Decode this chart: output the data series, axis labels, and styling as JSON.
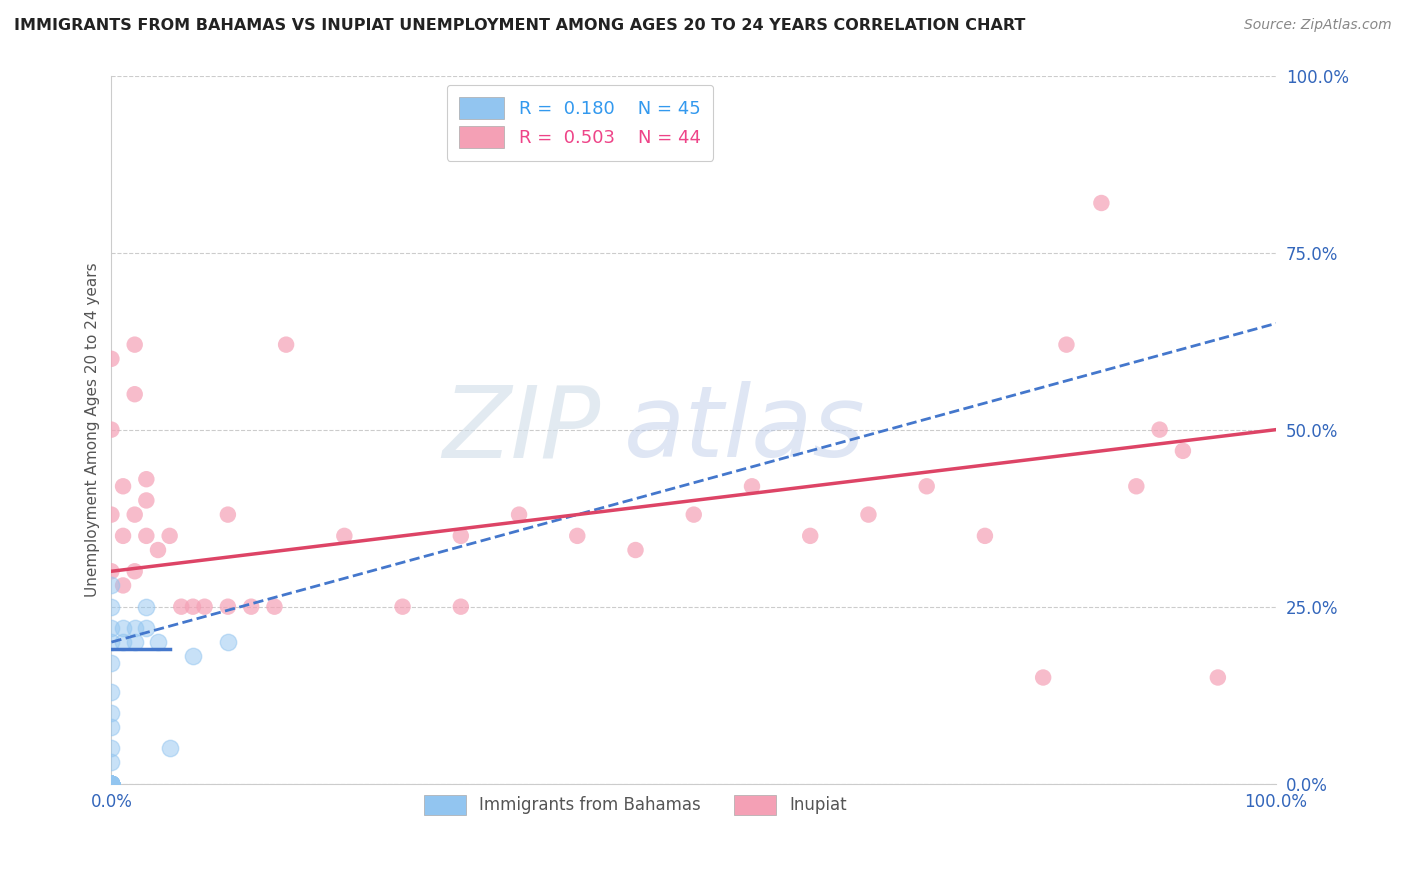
{
  "title": "IMMIGRANTS FROM BAHAMAS VS INUPIAT UNEMPLOYMENT AMONG AGES 20 TO 24 YEARS CORRELATION CHART",
  "source": "Source: ZipAtlas.com",
  "ylabel": "Unemployment Among Ages 20 to 24 years",
  "xlim": [
    0.0,
    1.0
  ],
  "ylim": [
    0.0,
    1.0
  ],
  "ytick_positions": [
    0.0,
    0.25,
    0.5,
    0.75,
    1.0
  ],
  "ytick_labels": [
    "0.0%",
    "25.0%",
    "50.0%",
    "75.0%",
    "100.0%"
  ],
  "grid_color": "#cccccc",
  "blue_color": "#92C5F0",
  "pink_color": "#F4A0B5",
  "blue_line_color": "#4477CC",
  "pink_line_color": "#DD4466",
  "blue_scatter": [
    [
      0.0,
      0.0
    ],
    [
      0.0,
      0.0
    ],
    [
      0.0,
      0.0
    ],
    [
      0.0,
      0.0
    ],
    [
      0.0,
      0.0
    ],
    [
      0.0,
      0.0
    ],
    [
      0.0,
      0.0
    ],
    [
      0.0,
      0.0
    ],
    [
      0.0,
      0.0
    ],
    [
      0.0,
      0.0
    ],
    [
      0.0,
      0.0
    ],
    [
      0.0,
      0.0
    ],
    [
      0.0,
      0.0
    ],
    [
      0.0,
      0.0
    ],
    [
      0.0,
      0.0
    ],
    [
      0.0,
      0.0
    ],
    [
      0.0,
      0.0
    ],
    [
      0.0,
      0.0
    ],
    [
      0.0,
      0.0
    ],
    [
      0.0,
      0.0
    ],
    [
      0.0,
      0.0
    ],
    [
      0.0,
      0.0
    ],
    [
      0.0,
      0.0
    ],
    [
      0.0,
      0.0
    ],
    [
      0.0,
      0.0
    ],
    [
      0.0,
      0.03
    ],
    [
      0.0,
      0.05
    ],
    [
      0.0,
      0.08
    ],
    [
      0.0,
      0.1
    ],
    [
      0.0,
      0.13
    ],
    [
      0.0,
      0.17
    ],
    [
      0.0,
      0.2
    ],
    [
      0.0,
      0.22
    ],
    [
      0.0,
      0.25
    ],
    [
      0.0,
      0.28
    ],
    [
      0.01,
      0.2
    ],
    [
      0.01,
      0.22
    ],
    [
      0.02,
      0.2
    ],
    [
      0.02,
      0.22
    ],
    [
      0.03,
      0.22
    ],
    [
      0.03,
      0.25
    ],
    [
      0.04,
      0.2
    ],
    [
      0.05,
      0.05
    ],
    [
      0.07,
      0.18
    ],
    [
      0.1,
      0.2
    ]
  ],
  "pink_scatter": [
    [
      0.0,
      0.3
    ],
    [
      0.0,
      0.38
    ],
    [
      0.0,
      0.5
    ],
    [
      0.0,
      0.6
    ],
    [
      0.01,
      0.28
    ],
    [
      0.01,
      0.35
    ],
    [
      0.01,
      0.42
    ],
    [
      0.02,
      0.3
    ],
    [
      0.02,
      0.38
    ],
    [
      0.02,
      0.55
    ],
    [
      0.02,
      0.62
    ],
    [
      0.03,
      0.35
    ],
    [
      0.03,
      0.4
    ],
    [
      0.03,
      0.43
    ],
    [
      0.04,
      0.33
    ],
    [
      0.05,
      0.35
    ],
    [
      0.06,
      0.25
    ],
    [
      0.07,
      0.25
    ],
    [
      0.08,
      0.25
    ],
    [
      0.1,
      0.25
    ],
    [
      0.1,
      0.38
    ],
    [
      0.12,
      0.25
    ],
    [
      0.14,
      0.25
    ],
    [
      0.15,
      0.62
    ],
    [
      0.2,
      0.35
    ],
    [
      0.25,
      0.25
    ],
    [
      0.3,
      0.25
    ],
    [
      0.3,
      0.35
    ],
    [
      0.35,
      0.38
    ],
    [
      0.4,
      0.35
    ],
    [
      0.45,
      0.33
    ],
    [
      0.5,
      0.38
    ],
    [
      0.55,
      0.42
    ],
    [
      0.6,
      0.35
    ],
    [
      0.65,
      0.38
    ],
    [
      0.7,
      0.42
    ],
    [
      0.75,
      0.35
    ],
    [
      0.8,
      0.15
    ],
    [
      0.82,
      0.62
    ],
    [
      0.85,
      0.82
    ],
    [
      0.88,
      0.42
    ],
    [
      0.9,
      0.5
    ],
    [
      0.92,
      0.47
    ],
    [
      0.95,
      0.15
    ]
  ],
  "blue_solid_line": {
    "x0": 0.0,
    "x1": 0.05,
    "y0": 0.19,
    "y1": 0.19
  },
  "blue_dashed_line": {
    "x0": 0.0,
    "x1": 1.0,
    "y0": 0.2,
    "y1": 0.65
  },
  "pink_solid_line": {
    "x0": 0.0,
    "x1": 1.0,
    "y0": 0.3,
    "y1": 0.5
  }
}
